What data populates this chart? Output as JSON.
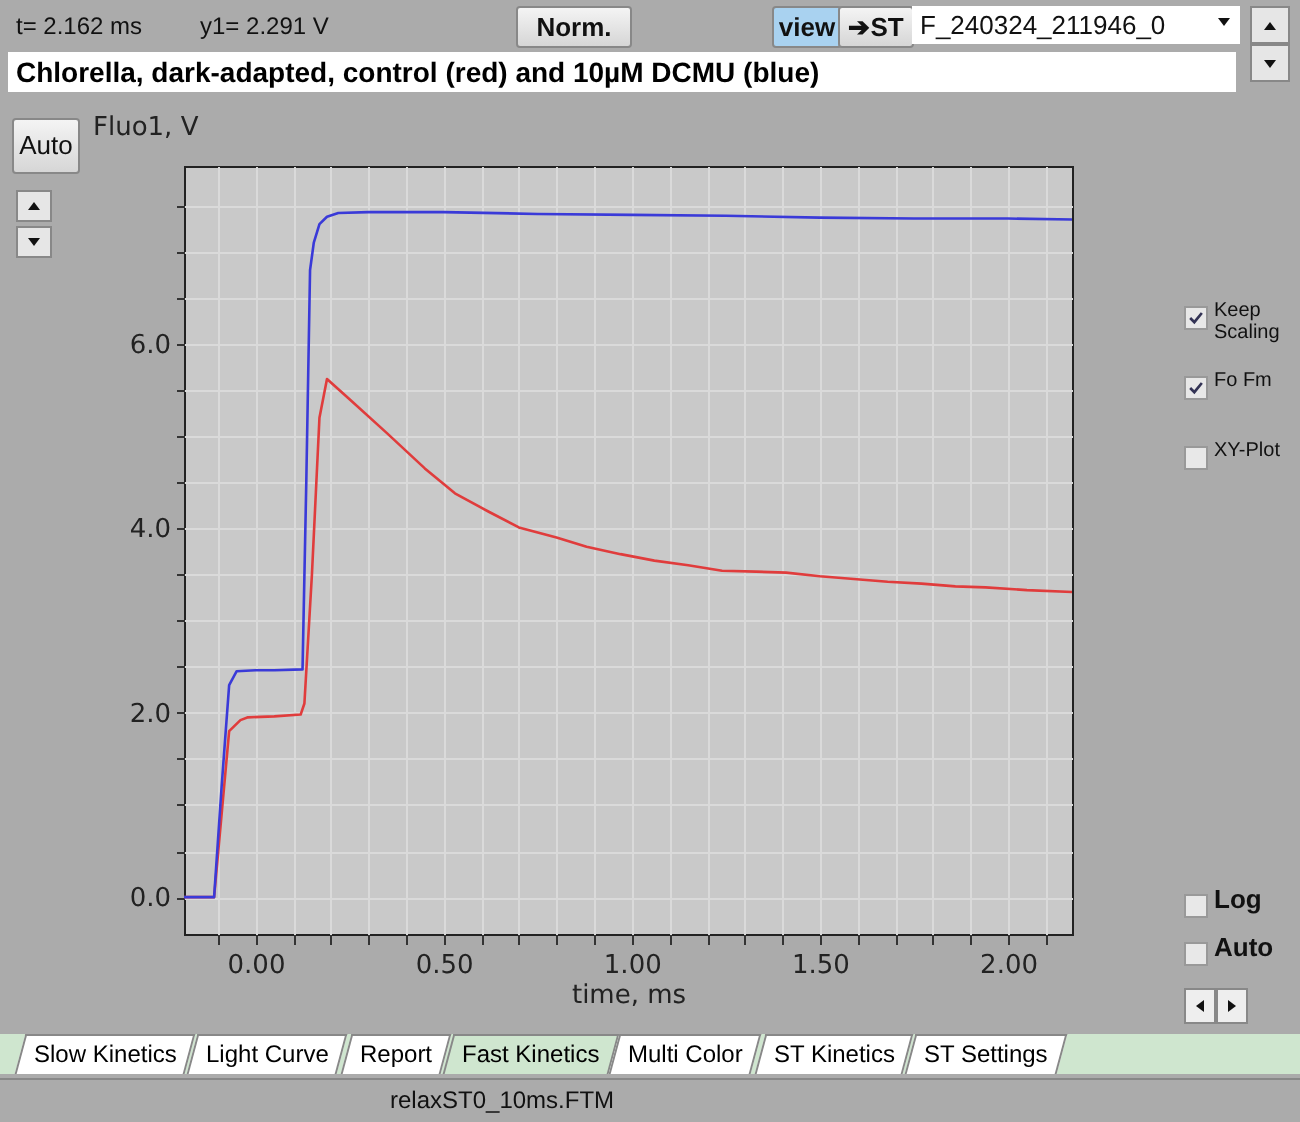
{
  "chart_data": {
    "type": "line",
    "title": "Chlorella, dark-adapted, control (red) and 10µM DCMU (blue)",
    "xlabel": "time, ms",
    "ylabel": "Fluo1, V",
    "xlim": [
      -0.19,
      2.17
    ],
    "ylim": [
      -0.4,
      7.93
    ],
    "xticks": [
      {
        "value": -0.1,
        "label": null
      },
      {
        "value": 0,
        "label": "0.00"
      },
      {
        "value": 0.1,
        "label": null
      },
      {
        "value": 0.2,
        "label": null
      },
      {
        "value": 0.3,
        "label": null
      },
      {
        "value": 0.4,
        "label": null
      },
      {
        "value": 0.5,
        "label": "0.50"
      },
      {
        "value": 0.6,
        "label": null
      },
      {
        "value": 0.7,
        "label": null
      },
      {
        "value": 0.8,
        "label": null
      },
      {
        "value": 0.9,
        "label": null
      },
      {
        "value": 1,
        "label": "1.00"
      },
      {
        "value": 1.1,
        "label": null
      },
      {
        "value": 1.2,
        "label": null
      },
      {
        "value": 1.3,
        "label": null
      },
      {
        "value": 1.4,
        "label": null
      },
      {
        "value": 1.5,
        "label": "1.50"
      },
      {
        "value": 1.6,
        "label": null
      },
      {
        "value": 1.7,
        "label": null
      },
      {
        "value": 1.8,
        "label": null
      },
      {
        "value": 1.9,
        "label": null
      },
      {
        "value": 2,
        "label": "2.00"
      },
      {
        "value": 2.1,
        "label": null
      }
    ],
    "yticks": [
      {
        "value": 0,
        "label": "0.0"
      },
      {
        "value": 0.5,
        "label": null
      },
      {
        "value": 1,
        "label": null
      },
      {
        "value": 1.5,
        "label": null
      },
      {
        "value": 2,
        "label": "2.0"
      },
      {
        "value": 2.5,
        "label": null
      },
      {
        "value": 3,
        "label": null
      },
      {
        "value": 3.5,
        "label": null
      },
      {
        "value": 4,
        "label": "4.0"
      },
      {
        "value": 4.5,
        "label": null
      },
      {
        "value": 5,
        "label": null
      },
      {
        "value": 5.5,
        "label": null
      },
      {
        "value": 6,
        "label": "6.0"
      },
      {
        "value": 6.5,
        "label": null
      },
      {
        "value": 7,
        "label": null
      },
      {
        "value": 7.5,
        "label": null
      }
    ],
    "grid": true,
    "series": [
      {
        "color": "#e03c3c",
        "x": [
          -0.19,
          -0.11,
          -0.09,
          -0.07,
          -0.04,
          -0.02,
          0.05,
          0.12,
          0.13,
          0.15,
          0.17,
          0.19,
          0.25,
          0.35,
          0.45,
          0.53,
          0.62,
          0.7,
          0.8,
          0.88,
          0.97,
          1.06,
          1.15,
          1.24,
          1.33,
          1.41,
          1.5,
          1.59,
          1.68,
          1.77,
          1.86,
          1.94,
          2.05,
          2.17
        ],
        "values": [
          0,
          0,
          0.9,
          1.8,
          1.92,
          1.95,
          1.96,
          1.98,
          2.1,
          3.5,
          5.2,
          5.62,
          5.4,
          5.03,
          4.65,
          4.38,
          4.18,
          4.01,
          3.9,
          3.8,
          3.72,
          3.65,
          3.6,
          3.54,
          3.53,
          3.52,
          3.48,
          3.45,
          3.42,
          3.4,
          3.37,
          3.36,
          3.33,
          3.31
        ]
      },
      {
        "color": "#3a3ad8",
        "x": [
          -0.19,
          -0.11,
          -0.09,
          -0.07,
          -0.05,
          0,
          0.05,
          0.125,
          0.135,
          0.145,
          0.155,
          0.17,
          0.19,
          0.22,
          0.3,
          0.5,
          0.75,
          1,
          1.25,
          1.5,
          1.75,
          2,
          2.17
        ],
        "values": [
          0,
          0,
          1.2,
          2.3,
          2.45,
          2.46,
          2.46,
          2.47,
          4.5,
          6.8,
          7.1,
          7.3,
          7.38,
          7.42,
          7.43,
          7.43,
          7.41,
          7.4,
          7.39,
          7.37,
          7.36,
          7.36,
          7.35
        ]
      }
    ],
    "annotations": [
      "t= 2.162 ms",
      "y1= 2.291 V",
      "Norm.",
      "view",
      "➔ST",
      "F_240324_211946_0",
      "Auto",
      "Keep Scaling",
      "Fo Fm",
      "XY-Plot",
      "Log",
      "Auto",
      "Slow Kinetics",
      "Light Curve",
      "Report",
      "Fast Kinetics",
      "Multi Color",
      "ST Kinetics",
      "ST Settings",
      "relaxST0_10ms.FTM"
    ]
  }
}
